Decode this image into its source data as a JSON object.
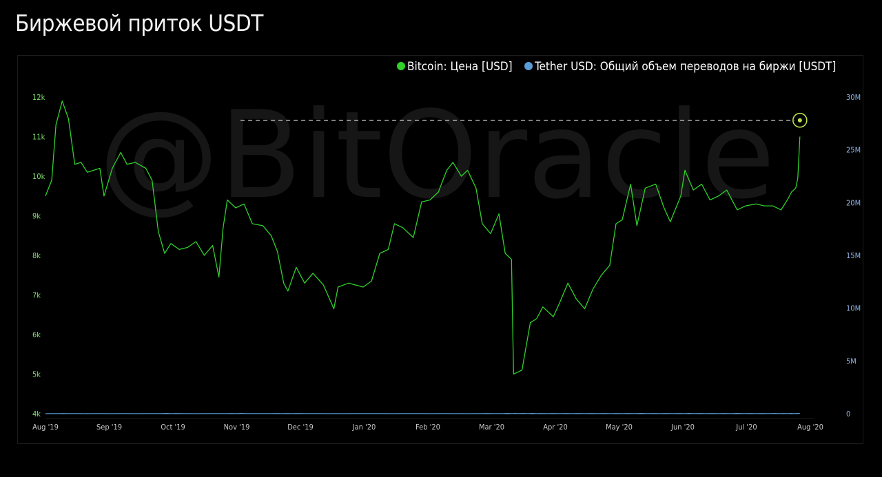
{
  "page": {
    "title": "Биржевой приток USDT"
  },
  "watermark": "@BitOracle",
  "chart_data": {
    "type": "line",
    "title": "Биржевой приток USDT",
    "legend_position": "top-right",
    "grid": false,
    "x_ticks": [
      "Aug '19",
      "Sep '19",
      "Oct '19",
      "Nov '19",
      "Dec '19",
      "Jan '20",
      "Feb '20",
      "Mar '20",
      "Apr '20",
      "May '20",
      "Jun '20",
      "Jul '20",
      "Aug '20"
    ],
    "x_range": [
      "2019-08-01",
      "2020-08-01"
    ],
    "y_left": {
      "ticks": [
        "4k",
        "5k",
        "6k",
        "7k",
        "8k",
        "9k",
        "10k",
        "11k",
        "12k"
      ],
      "range": [
        4000,
        12000
      ]
    },
    "y_right": {
      "ticks": [
        "0",
        "5M",
        "10M",
        "15M",
        "20M",
        "25M",
        "30M"
      ],
      "range": [
        0,
        30000000
      ]
    },
    "highlight": {
      "date": "2020-07-27",
      "value": 27800000,
      "note": "dashed horizontal reference line from the Nov '19 peak"
    },
    "series": [
      {
        "name": "Bitcoin: Цена [USD]",
        "axis": "left",
        "color": "#2fd12a",
        "points": [
          [
            "2019-08-01",
            9500
          ],
          [
            "2019-08-04",
            9900
          ],
          [
            "2019-08-06",
            11300
          ],
          [
            "2019-08-09",
            11900
          ],
          [
            "2019-08-12",
            11450
          ],
          [
            "2019-08-15",
            10300
          ],
          [
            "2019-08-18",
            10350
          ],
          [
            "2019-08-21",
            10100
          ],
          [
            "2019-08-24",
            10150
          ],
          [
            "2019-08-27",
            10200
          ],
          [
            "2019-08-29",
            9500
          ],
          [
            "2019-09-02",
            10200
          ],
          [
            "2019-09-06",
            10600
          ],
          [
            "2019-09-09",
            10300
          ],
          [
            "2019-09-13",
            10350
          ],
          [
            "2019-09-18",
            10200
          ],
          [
            "2019-09-21",
            9900
          ],
          [
            "2019-09-24",
            8600
          ],
          [
            "2019-09-27",
            8050
          ],
          [
            "2019-09-30",
            8300
          ],
          [
            "2019-10-04",
            8150
          ],
          [
            "2019-10-08",
            8200
          ],
          [
            "2019-10-12",
            8350
          ],
          [
            "2019-10-16",
            8000
          ],
          [
            "2019-10-20",
            8250
          ],
          [
            "2019-10-23",
            7450
          ],
          [
            "2019-10-25",
            8700
          ],
          [
            "2019-10-27",
            9400
          ],
          [
            "2019-10-31",
            9200
          ],
          [
            "2019-11-04",
            9300
          ],
          [
            "2019-11-08",
            8800
          ],
          [
            "2019-11-13",
            8750
          ],
          [
            "2019-11-17",
            8500
          ],
          [
            "2019-11-20",
            8100
          ],
          [
            "2019-11-23",
            7300
          ],
          [
            "2019-11-25",
            7100
          ],
          [
            "2019-11-29",
            7700
          ],
          [
            "2019-12-03",
            7300
          ],
          [
            "2019-12-07",
            7550
          ],
          [
            "2019-12-12",
            7250
          ],
          [
            "2019-12-17",
            6650
          ],
          [
            "2019-12-19",
            7200
          ],
          [
            "2019-12-24",
            7300
          ],
          [
            "2019-12-31",
            7200
          ],
          [
            "2020-01-04",
            7350
          ],
          [
            "2020-01-08",
            8050
          ],
          [
            "2020-01-12",
            8150
          ],
          [
            "2020-01-15",
            8800
          ],
          [
            "2020-01-19",
            8700
          ],
          [
            "2020-01-24",
            8450
          ],
          [
            "2020-01-28",
            9350
          ],
          [
            "2020-02-01",
            9400
          ],
          [
            "2020-02-05",
            9600
          ],
          [
            "2020-02-09",
            10150
          ],
          [
            "2020-02-12",
            10350
          ],
          [
            "2020-02-16",
            10000
          ],
          [
            "2020-02-19",
            10150
          ],
          [
            "2020-02-23",
            9700
          ],
          [
            "2020-02-26",
            8800
          ],
          [
            "2020-03-01",
            8550
          ],
          [
            "2020-03-05",
            9050
          ],
          [
            "2020-03-08",
            8050
          ],
          [
            "2020-03-11",
            7900
          ],
          [
            "2020-03-12",
            5000
          ],
          [
            "2020-03-16",
            5100
          ],
          [
            "2020-03-20",
            6300
          ],
          [
            "2020-03-23",
            6400
          ],
          [
            "2020-03-26",
            6700
          ],
          [
            "2020-03-31",
            6450
          ],
          [
            "2020-04-03",
            6800
          ],
          [
            "2020-04-07",
            7300
          ],
          [
            "2020-04-11",
            6900
          ],
          [
            "2020-04-15",
            6650
          ],
          [
            "2020-04-19",
            7150
          ],
          [
            "2020-04-23",
            7500
          ],
          [
            "2020-04-27",
            7750
          ],
          [
            "2020-04-30",
            8800
          ],
          [
            "2020-05-03",
            8900
          ],
          [
            "2020-05-07",
            9800
          ],
          [
            "2020-05-10",
            8750
          ],
          [
            "2020-05-14",
            9700
          ],
          [
            "2020-05-19",
            9800
          ],
          [
            "2020-05-23",
            9200
          ],
          [
            "2020-05-26",
            8850
          ],
          [
            "2020-05-31",
            9500
          ],
          [
            "2020-06-02",
            10150
          ],
          [
            "2020-06-06",
            9650
          ],
          [
            "2020-06-10",
            9800
          ],
          [
            "2020-06-14",
            9400
          ],
          [
            "2020-06-18",
            9500
          ],
          [
            "2020-06-22",
            9650
          ],
          [
            "2020-06-27",
            9150
          ],
          [
            "2020-07-01",
            9250
          ],
          [
            "2020-07-06",
            9300
          ],
          [
            "2020-07-10",
            9250
          ],
          [
            "2020-07-14",
            9250
          ],
          [
            "2020-07-18",
            9150
          ],
          [
            "2020-07-21",
            9400
          ],
          [
            "2020-07-23",
            9600
          ],
          [
            "2020-07-25",
            9700
          ],
          [
            "2020-07-26",
            9950
          ],
          [
            "2020-07-27",
            11000
          ]
        ]
      },
      {
        "name": "Tether USD: Общий объем переводов на биржи [USDT]",
        "axis": "right",
        "color": "#5b9bd8",
        "points": [
          [
            "2019-08-01",
            2200
          ],
          [
            "2019-08-03",
            5800
          ],
          [
            "2019-08-05",
            3600
          ],
          [
            "2019-08-08",
            7500
          ],
          [
            "2019-08-09",
            11800
          ],
          [
            "2019-08-11",
            4200
          ],
          [
            "2019-08-13",
            7400
          ],
          [
            "2019-08-15",
            4800
          ],
          [
            "2019-08-18",
            6500
          ],
          [
            "2019-08-20",
            2800
          ],
          [
            "2019-08-23",
            6300
          ],
          [
            "2019-08-26",
            3400
          ],
          [
            "2019-08-29",
            6800
          ],
          [
            "2019-09-01",
            3100
          ],
          [
            "2019-09-04",
            7200
          ],
          [
            "2019-09-07",
            3300
          ],
          [
            "2019-09-10",
            8800
          ],
          [
            "2019-09-13",
            3000
          ],
          [
            "2019-09-16",
            7500
          ],
          [
            "2019-09-19",
            4200
          ],
          [
            "2019-09-22",
            6200
          ],
          [
            "2019-09-25",
            3300
          ],
          [
            "2019-09-28",
            19500
          ],
          [
            "2019-09-30",
            3600
          ],
          [
            "2019-10-03",
            16000
          ],
          [
            "2019-10-06",
            5200
          ],
          [
            "2019-10-09",
            7000
          ],
          [
            "2019-10-12",
            3200
          ],
          [
            "2019-10-15",
            4600
          ],
          [
            "2019-10-18",
            4200
          ],
          [
            "2019-10-21",
            8500
          ],
          [
            "2019-10-24",
            3600
          ],
          [
            "2019-10-27",
            7000
          ],
          [
            "2019-10-29",
            11000
          ],
          [
            "2019-10-31",
            5800
          ],
          [
            "2019-11-02",
            22000
          ],
          [
            "2019-11-03",
            30800
          ],
          [
            "2019-11-05",
            5500
          ],
          [
            "2019-11-08",
            9200
          ],
          [
            "2019-11-11",
            4200
          ],
          [
            "2019-11-14",
            8800
          ],
          [
            "2019-11-17",
            3600
          ],
          [
            "2019-11-20",
            11000
          ],
          [
            "2019-11-22",
            4800
          ],
          [
            "2019-11-25",
            14500
          ],
          [
            "2019-11-27",
            6200
          ],
          [
            "2019-11-30",
            11500
          ],
          [
            "2019-12-03",
            4000
          ],
          [
            "2019-12-06",
            8000
          ],
          [
            "2019-12-09",
            3400
          ],
          [
            "2019-12-12",
            7000
          ],
          [
            "2019-12-15",
            2400
          ],
          [
            "2019-12-18",
            6800
          ],
          [
            "2019-12-21",
            3000
          ],
          [
            "2019-12-24",
            7500
          ],
          [
            "2019-12-27",
            4200
          ],
          [
            "2019-12-30",
            8000
          ],
          [
            "2020-01-02",
            3400
          ],
          [
            "2020-01-05",
            6000
          ],
          [
            "2020-01-08",
            3600
          ],
          [
            "2020-01-11",
            6800
          ],
          [
            "2020-01-14",
            3000
          ],
          [
            "2020-01-17",
            9000
          ],
          [
            "2020-01-20",
            5000
          ],
          [
            "2020-01-23",
            8000
          ],
          [
            "2020-01-26",
            3400
          ],
          [
            "2020-01-29",
            7000
          ],
          [
            "2020-02-01",
            3000
          ],
          [
            "2020-02-04",
            8000
          ],
          [
            "2020-02-07",
            3600
          ],
          [
            "2020-02-10",
            6200
          ],
          [
            "2020-02-13",
            2200
          ],
          [
            "2020-02-16",
            5500
          ],
          [
            "2020-02-19",
            3000
          ],
          [
            "2020-02-22",
            8000
          ],
          [
            "2020-02-25",
            4200
          ],
          [
            "2020-02-28",
            12000
          ],
          [
            "2020-03-02",
            6000
          ],
          [
            "2020-03-05",
            9000
          ],
          [
            "2020-03-07",
            3800
          ],
          [
            "2020-03-09",
            19500
          ],
          [
            "2020-03-11",
            6000
          ],
          [
            "2020-03-13",
            27000
          ],
          [
            "2020-03-14",
            9000
          ],
          [
            "2020-03-17",
            18000
          ],
          [
            "2020-03-19",
            4400
          ],
          [
            "2020-03-21",
            19000
          ],
          [
            "2020-03-23",
            6000
          ],
          [
            "2020-03-25",
            14500
          ],
          [
            "2020-03-28",
            4800
          ],
          [
            "2020-03-31",
            11000
          ],
          [
            "2020-04-03",
            5000
          ],
          [
            "2020-04-06",
            12000
          ],
          [
            "2020-04-09",
            4400
          ],
          [
            "2020-04-12",
            10800
          ],
          [
            "2020-04-15",
            5200
          ],
          [
            "2020-04-18",
            12500
          ],
          [
            "2020-04-21",
            5600
          ],
          [
            "2020-04-24",
            11000
          ],
          [
            "2020-04-27",
            5400
          ],
          [
            "2020-04-30",
            13000
          ],
          [
            "2020-05-03",
            6000
          ],
          [
            "2020-05-06",
            14500
          ],
          [
            "2020-05-09",
            5200
          ],
          [
            "2020-05-12",
            16500
          ],
          [
            "2020-05-15",
            6500
          ],
          [
            "2020-05-18",
            15000
          ],
          [
            "2020-05-21",
            6000
          ],
          [
            "2020-05-24",
            11000
          ],
          [
            "2020-05-27",
            5500
          ],
          [
            "2020-05-30",
            14000
          ],
          [
            "2020-06-02",
            7000
          ],
          [
            "2020-06-04",
            21500
          ],
          [
            "2020-06-06",
            6000
          ],
          [
            "2020-06-09",
            15000
          ],
          [
            "2020-06-12",
            6500
          ],
          [
            "2020-06-15",
            14000
          ],
          [
            "2020-06-18",
            5500
          ],
          [
            "2020-06-21",
            13000
          ],
          [
            "2020-06-24",
            6000
          ],
          [
            "2020-06-27",
            17000
          ],
          [
            "2020-06-30",
            6500
          ],
          [
            "2020-07-03",
            15500
          ],
          [
            "2020-07-06",
            7500
          ],
          [
            "2020-07-09",
            14500
          ],
          [
            "2020-07-12",
            6000
          ],
          [
            "2020-07-15",
            25000
          ],
          [
            "2020-07-17",
            8000
          ],
          [
            "2020-07-19",
            14800
          ],
          [
            "2020-07-21",
            6800
          ],
          [
            "2020-07-23",
            18000
          ],
          [
            "2020-07-24",
            8000
          ],
          [
            "2020-07-26",
            18500
          ],
          [
            "2020-07-27",
            27800
          ]
        ]
      }
    ]
  }
}
